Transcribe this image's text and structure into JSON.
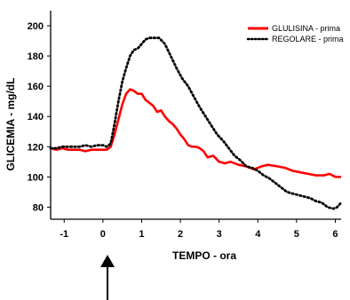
{
  "chart_data": {
    "type": "line",
    "xlabel": "TEMPO - ora",
    "ylabel": "GLICEMIA - mg/dL",
    "xlim": [
      -1.35,
      6.15
    ],
    "ylim": [
      72,
      210
    ],
    "xticks": [
      -1,
      0,
      1,
      2,
      3,
      4,
      5,
      6
    ],
    "yticks": [
      80,
      100,
      120,
      140,
      160,
      180,
      200
    ],
    "grid": false,
    "legend_position": "top-right",
    "annotation": {
      "type": "arrow-up",
      "x": 0
    },
    "series": [
      {
        "name": "GLULISINA - prima",
        "color": "#ff0000",
        "style": "solid",
        "points": [
          [
            -1.35,
            119
          ],
          [
            -1.2,
            118
          ],
          [
            -1.05,
            119
          ],
          [
            -0.9,
            118
          ],
          [
            -0.75,
            118
          ],
          [
            -0.6,
            118
          ],
          [
            -0.45,
            117
          ],
          [
            -0.3,
            118
          ],
          [
            -0.15,
            118
          ],
          [
            0,
            118
          ],
          [
            0.1,
            118
          ],
          [
            0.2,
            120
          ],
          [
            0.3,
            128
          ],
          [
            0.4,
            138
          ],
          [
            0.5,
            148
          ],
          [
            0.6,
            155
          ],
          [
            0.7,
            158
          ],
          [
            0.8,
            157
          ],
          [
            0.9,
            155
          ],
          [
            1.0,
            155
          ],
          [
            1.1,
            151
          ],
          [
            1.2,
            149
          ],
          [
            1.3,
            147
          ],
          [
            1.4,
            143
          ],
          [
            1.5,
            144
          ],
          [
            1.6,
            140
          ],
          [
            1.7,
            137
          ],
          [
            1.8,
            135
          ],
          [
            1.9,
            132
          ],
          [
            2.0,
            128
          ],
          [
            2.1,
            125
          ],
          [
            2.2,
            121
          ],
          [
            2.3,
            120
          ],
          [
            2.4,
            120
          ],
          [
            2.5,
            119
          ],
          [
            2.6,
            117
          ],
          [
            2.7,
            113
          ],
          [
            2.85,
            114
          ],
          [
            3.0,
            110
          ],
          [
            3.15,
            109
          ],
          [
            3.3,
            110
          ],
          [
            3.5,
            108
          ],
          [
            3.7,
            107
          ],
          [
            3.9,
            105
          ],
          [
            4.1,
            107
          ],
          [
            4.25,
            108
          ],
          [
            4.5,
            107
          ],
          [
            4.7,
            106
          ],
          [
            4.9,
            104
          ],
          [
            5.1,
            103
          ],
          [
            5.3,
            102
          ],
          [
            5.5,
            101
          ],
          [
            5.7,
            101
          ],
          [
            5.85,
            102
          ],
          [
            6.0,
            100
          ],
          [
            6.15,
            100
          ]
        ]
      },
      {
        "name": "REGOLARE - prima",
        "color": "#000000",
        "style": "dotted",
        "points": [
          [
            -1.35,
            119
          ],
          [
            -1.2,
            119
          ],
          [
            -1.05,
            120
          ],
          [
            -0.9,
            120
          ],
          [
            -0.75,
            120
          ],
          [
            -0.6,
            120
          ],
          [
            -0.45,
            121
          ],
          [
            -0.3,
            120
          ],
          [
            -0.15,
            121
          ],
          [
            0,
            121
          ],
          [
            0.1,
            120
          ],
          [
            0.2,
            122
          ],
          [
            0.3,
            135
          ],
          [
            0.4,
            150
          ],
          [
            0.5,
            163
          ],
          [
            0.6,
            172
          ],
          [
            0.7,
            180
          ],
          [
            0.8,
            184
          ],
          [
            0.9,
            185
          ],
          [
            1.0,
            188
          ],
          [
            1.1,
            191
          ],
          [
            1.2,
            192
          ],
          [
            1.3,
            192
          ],
          [
            1.45,
            192
          ],
          [
            1.6,
            188
          ],
          [
            1.75,
            180
          ],
          [
            1.9,
            172
          ],
          [
            2.05,
            165
          ],
          [
            2.2,
            160
          ],
          [
            2.35,
            153
          ],
          [
            2.5,
            146
          ],
          [
            2.65,
            140
          ],
          [
            2.8,
            134
          ],
          [
            2.95,
            128
          ],
          [
            3.1,
            124
          ],
          [
            3.25,
            119
          ],
          [
            3.4,
            114
          ],
          [
            3.55,
            111
          ],
          [
            3.7,
            107
          ],
          [
            3.85,
            106
          ],
          [
            4.0,
            104
          ],
          [
            4.15,
            101
          ],
          [
            4.3,
            99
          ],
          [
            4.45,
            96
          ],
          [
            4.6,
            93
          ],
          [
            4.75,
            90
          ],
          [
            4.9,
            89
          ],
          [
            5.05,
            88
          ],
          [
            5.2,
            87
          ],
          [
            5.35,
            86
          ],
          [
            5.5,
            84
          ],
          [
            5.65,
            83
          ],
          [
            5.8,
            80
          ],
          [
            5.95,
            79
          ],
          [
            6.05,
            80
          ],
          [
            6.15,
            83
          ]
        ]
      }
    ]
  }
}
